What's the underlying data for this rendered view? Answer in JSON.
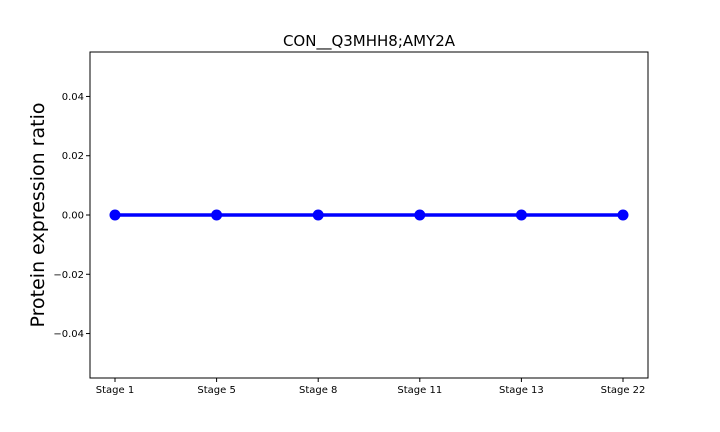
{
  "chart_data": {
    "type": "line",
    "title": "CON__Q3MHH8;AMY2A",
    "xlabel": "",
    "ylabel": "Protein expression ratio",
    "categories": [
      "Stage 1",
      "Stage 5",
      "Stage 8",
      "Stage 11",
      "Stage 13",
      "Stage 22"
    ],
    "series": [
      {
        "values": [
          0,
          0,
          0,
          0,
          0,
          0
        ],
        "color": "#0000ff"
      }
    ],
    "ylim": [
      -0.055,
      0.055
    ],
    "yticks": [
      0.04,
      0.02,
      0.0,
      -0.02,
      -0.04
    ],
    "ytick_labels": [
      "0.04",
      "0.02",
      "0.00",
      "−0.02",
      "−0.04"
    ],
    "grid": false,
    "legend": false
  }
}
